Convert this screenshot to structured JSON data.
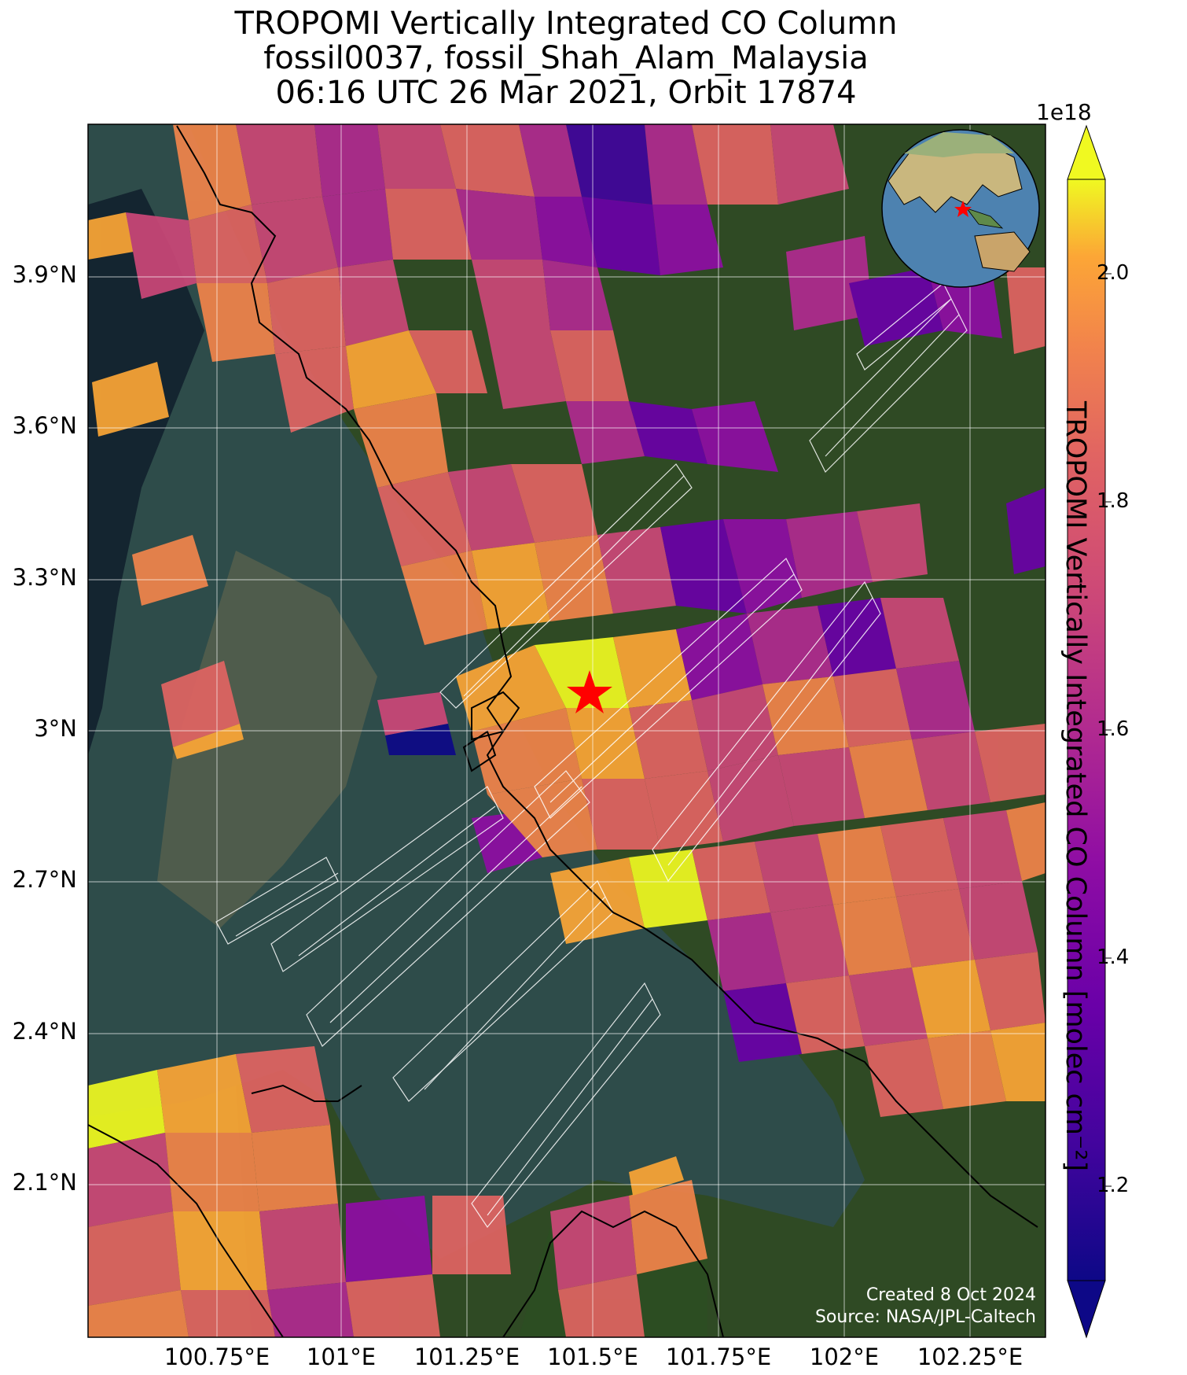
{
  "title": {
    "line1": "TROPOMI Vertically Integrated CO Column",
    "line2": "fossil0037, fossil_Shah_Alam_Malaysia",
    "line3": "06:16 UTC 26 Mar 2021, Orbit 17874"
  },
  "map": {
    "lat_ticks": [
      "3.9°N",
      "3.6°N",
      "3.3°N",
      "3°N",
      "2.7°N",
      "2.4°N",
      "2.1°N"
    ],
    "lon_ticks": [
      "100.75°E",
      "101°E",
      "101.25°E",
      "101.5°E",
      "101.75°E",
      "102°E",
      "102.25°E"
    ],
    "site_marker": "red-star",
    "colors": {
      "water": "#2d4a4a",
      "land": "#2f4a24",
      "star": "#ff0000",
      "coast": "#000000",
      "grid_overlay": "#ffffff"
    }
  },
  "colorbar": {
    "exponent": "1e18",
    "ticks": [
      "2.0",
      "1.8",
      "1.6",
      "1.4",
      "1.2"
    ],
    "label": "TROPOMI Vertically Integrated CO Column [molec cm⁻²]",
    "colormap": "plasma"
  },
  "credit": {
    "created": "Created 8 Oct 2024",
    "source": "Source: NASA/JPL-Caltech"
  }
}
